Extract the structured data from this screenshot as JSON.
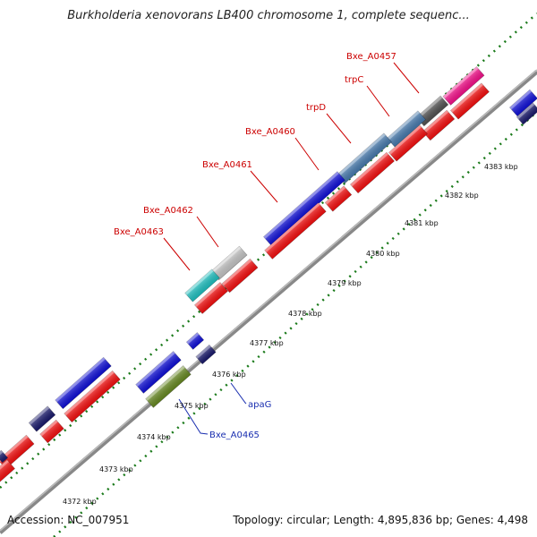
{
  "title": "Burkholderia xenovorans LB400 chromosome 1, complete sequenc...",
  "footer": {
    "accession": "Accession: NC_007951",
    "summary": "Topology: circular; Length: 4,895,836 bp; Genes: 4,498"
  },
  "kbp_ticks": [
    "4372 kbp",
    "4373 kbp",
    "4374 kbp",
    "4375 kbp",
    "4376 kbp",
    "4377 kbp",
    "4378 kbp",
    "4379 kbp",
    "4380 kbp",
    "4381 kbp",
    "4382 kbp",
    "4383 kbp"
  ],
  "gene_labels_red": [
    "Bxe_A0457",
    "trpC",
    "trpD",
    "Bxe_A0460",
    "Bxe_A0461",
    "Bxe_A0462",
    "Bxe_A0463"
  ],
  "gene_labels_blue": [
    "apaG",
    "Bxe_A0465"
  ],
  "colors": {
    "cds_red": "#ff1010",
    "gene_blue": "#1010e0",
    "steel_blue": "#4a7fb5",
    "navy": "#1a1a70",
    "olive": "#6b8e23",
    "cyan": "#20c8c8",
    "light_gray": "#cccccc",
    "dark_gray": "#555555",
    "pink": "#ff1090",
    "backbone": "#777777",
    "dotted_green": "#1a7a1a"
  }
}
